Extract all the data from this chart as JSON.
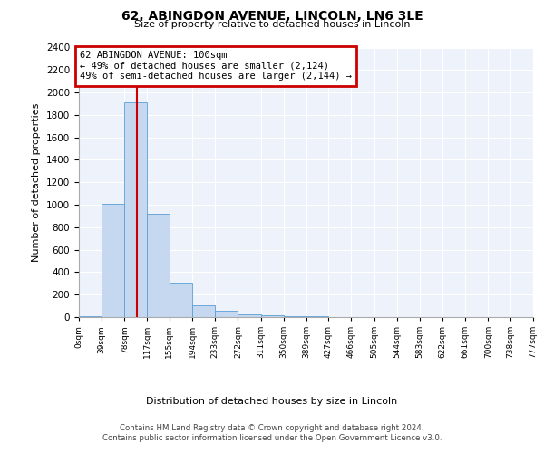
{
  "title1": "62, ABINGDON AVENUE, LINCOLN, LN6 3LE",
  "title2": "Size of property relative to detached houses in Lincoln",
  "xlabel": "Distribution of detached houses by size in Lincoln",
  "ylabel": "Number of detached properties",
  "bar_edges": [
    0,
    39,
    78,
    117,
    155,
    194,
    233,
    272,
    311,
    350,
    389,
    427,
    466,
    505,
    544,
    583,
    622,
    661,
    700,
    738,
    777
  ],
  "bar_heights": [
    10,
    1010,
    1910,
    920,
    310,
    105,
    55,
    25,
    15,
    10,
    5,
    3,
    2,
    1,
    1,
    1,
    0,
    0,
    0,
    0
  ],
  "bar_color": "#c5d8f0",
  "bar_edge_color": "#5a9fd4",
  "red_line_x": 100,
  "annotation_line1": "62 ABINGDON AVENUE: 100sqm",
  "annotation_line2": "← 49% of detached houses are smaller (2,124)",
  "annotation_line3": "49% of semi-detached houses are larger (2,144) →",
  "annotation_box_color": "#cc0000",
  "ylim": [
    0,
    2400
  ],
  "yticks": [
    0,
    200,
    400,
    600,
    800,
    1000,
    1200,
    1400,
    1600,
    1800,
    2000,
    2200,
    2400
  ],
  "bg_color": "#eef2fa",
  "grid_color": "#ffffff",
  "footer_line1": "Contains HM Land Registry data © Crown copyright and database right 2024.",
  "footer_line2": "Contains public sector information licensed under the Open Government Licence v3.0."
}
